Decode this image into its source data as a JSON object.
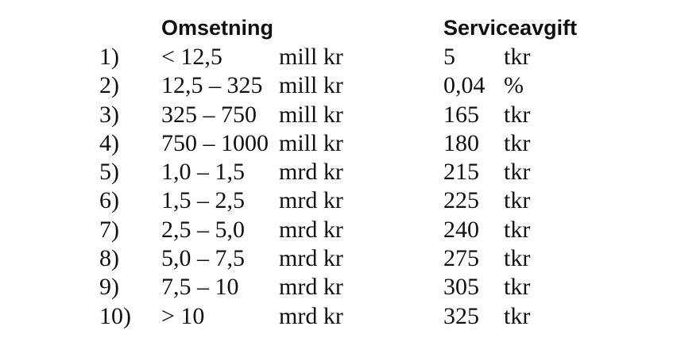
{
  "headers": {
    "omsetning": "Omsetning",
    "serviceavgift": "Serviceavgift"
  },
  "rows": [
    {
      "num": "1)",
      "range": "< 12,5",
      "unit": "mill kr",
      "fee": "5",
      "fee_unit": "tkr"
    },
    {
      "num": "2)",
      "range": "12,5 – 325",
      "unit": "mill kr",
      "fee": "0,04",
      "fee_unit": "%"
    },
    {
      "num": "3)",
      "range": "325 – 750",
      "unit": "mill kr",
      "fee": "165",
      "fee_unit": "tkr"
    },
    {
      "num": "4)",
      "range": "750 – 1000",
      "unit": "mill kr",
      "fee": "180",
      "fee_unit": "tkr"
    },
    {
      "num": "5)",
      "range": "1,0 – 1,5",
      "unit": "mrd kr",
      "fee": "215",
      "fee_unit": "tkr"
    },
    {
      "num": "6)",
      "range": "1,5 – 2,5",
      "unit": "mrd kr",
      "fee": "225",
      "fee_unit": "tkr"
    },
    {
      "num": "7)",
      "range": "2,5 – 5,0",
      "unit": "mrd kr",
      "fee": "240",
      "fee_unit": "tkr"
    },
    {
      "num": "8)",
      "range": "5,0 – 7,5",
      "unit": "mrd kr",
      "fee": "275",
      "fee_unit": "tkr"
    },
    {
      "num": "9)",
      "range": "7,5 – 10",
      "unit": "mrd kr",
      "fee": "305",
      "fee_unit": "tkr"
    },
    {
      "num": "10)",
      "range": "> 10",
      "unit": "mrd kr",
      "fee": "325",
      "fee_unit": "tkr"
    }
  ]
}
